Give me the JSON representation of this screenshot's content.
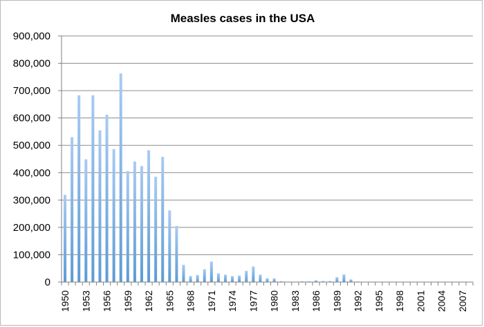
{
  "chart_data": {
    "type": "bar",
    "title": "Measles cases in the USA",
    "xlabel": "",
    "ylabel": "",
    "ylim": [
      0,
      900000
    ],
    "yticks": [
      0,
      100000,
      200000,
      300000,
      400000,
      500000,
      600000,
      700000,
      800000,
      900000
    ],
    "ytick_labels": [
      "0",
      "100,000",
      "200,000",
      "300,000",
      "400,000",
      "500,000",
      "600,000",
      "700,000",
      "800,000",
      "900,000"
    ],
    "xtick_labels": [
      "1950",
      "1953",
      "1956",
      "1959",
      "1962",
      "1965",
      "1968",
      "1971",
      "1974",
      "1977",
      "1980",
      "1983",
      "1986",
      "1989",
      "1992",
      "1995",
      "1998",
      "2001",
      "2004",
      "2007"
    ],
    "grid": true,
    "legend": "none",
    "bar_color": "#5b9bd5",
    "categories": [
      1950,
      1951,
      1952,
      1953,
      1954,
      1955,
      1956,
      1957,
      1958,
      1959,
      1960,
      1961,
      1962,
      1963,
      1964,
      1965,
      1966,
      1967,
      1968,
      1969,
      1970,
      1971,
      1972,
      1973,
      1974,
      1975,
      1976,
      1977,
      1978,
      1979,
      1980,
      1981,
      1982,
      1983,
      1984,
      1985,
      1986,
      1987,
      1988,
      1989,
      1990,
      1991,
      1992,
      1993,
      1994,
      1995,
      1996,
      1997,
      1998,
      1999,
      2000,
      2001,
      2002,
      2003,
      2004,
      2005,
      2006,
      2007,
      2008
    ],
    "values": [
      319000,
      530000,
      683000,
      449000,
      683000,
      555000,
      612000,
      486000,
      763000,
      406000,
      441000,
      424000,
      482000,
      385000,
      458000,
      262000,
      205000,
      63000,
      22000,
      26000,
      47000,
      75000,
      32000,
      27000,
      22000,
      24000,
      41000,
      57000,
      27000,
      14000,
      13500,
      3100,
      1700,
      1500,
      2600,
      2800,
      6300,
      3700,
      3400,
      18000,
      27800,
      9600,
      2200,
      300,
      960,
      300,
      510,
      140,
      100,
      100,
      86,
      116,
      44,
      56,
      37,
      66,
      55,
      43,
      140
    ]
  }
}
